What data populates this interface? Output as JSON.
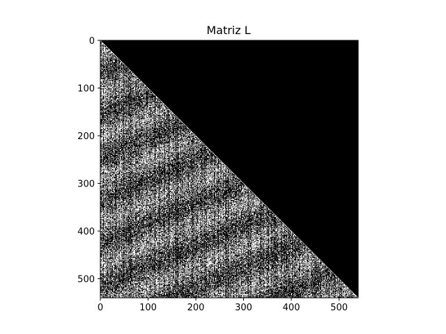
{
  "chart_data": {
    "type": "heatmap",
    "title": "Matriz L",
    "xlabel": "",
    "ylabel": "",
    "matrix_size": 540,
    "structure": "lower-triangular",
    "colormap": [
      "#000000",
      "#ffffff"
    ],
    "x_ticks": [
      0,
      100,
      200,
      300,
      400,
      500
    ],
    "y_ticks": [
      0,
      100,
      200,
      300,
      400,
      500
    ],
    "xlim": [
      0,
      540
    ],
    "ylim": [
      540,
      0
    ],
    "grid": false
  }
}
